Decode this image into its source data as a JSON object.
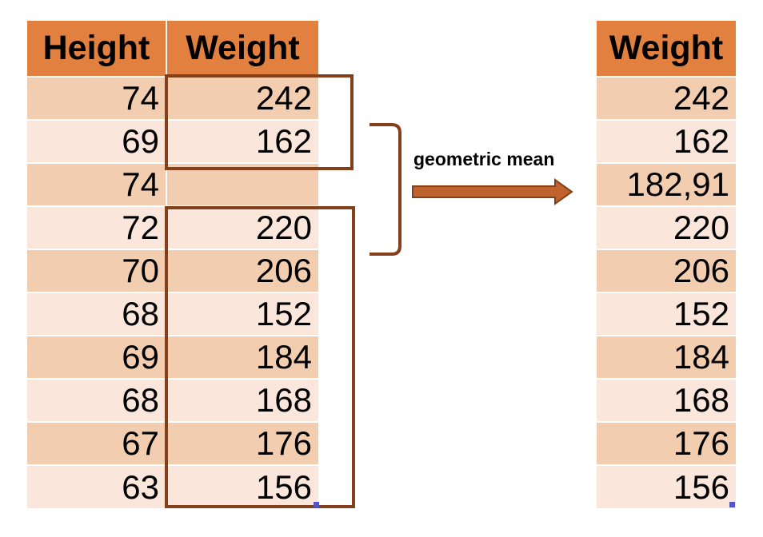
{
  "source_table": {
    "headers": [
      "Height",
      "Weight"
    ],
    "rows": [
      {
        "height": "74",
        "weight": "242"
      },
      {
        "height": "69",
        "weight": "162"
      },
      {
        "height": "74",
        "weight": ""
      },
      {
        "height": "72",
        "weight": "220"
      },
      {
        "height": "70",
        "weight": "206"
      },
      {
        "height": "68",
        "weight": "152"
      },
      {
        "height": "69",
        "weight": "184"
      },
      {
        "height": "68",
        "weight": "168"
      },
      {
        "height": "67",
        "weight": "176"
      },
      {
        "height": "63",
        "weight": "156"
      }
    ]
  },
  "operation": {
    "label": "geometric mean"
  },
  "result_table": {
    "header": "Weight",
    "rows": [
      "242",
      "162",
      "182,91",
      "220",
      "206",
      "152",
      "184",
      "168",
      "176",
      "156"
    ],
    "imputed_row_index": 2
  },
  "colors": {
    "header_fill": "#e2813f",
    "row_fill_dark": "#f3cdb0",
    "row_fill_light": "#fae6da",
    "group_outline": "#84401a",
    "arrow_fill": "#c0622b",
    "imputed_text": "#c0251d",
    "handle": "#5356c2"
  }
}
